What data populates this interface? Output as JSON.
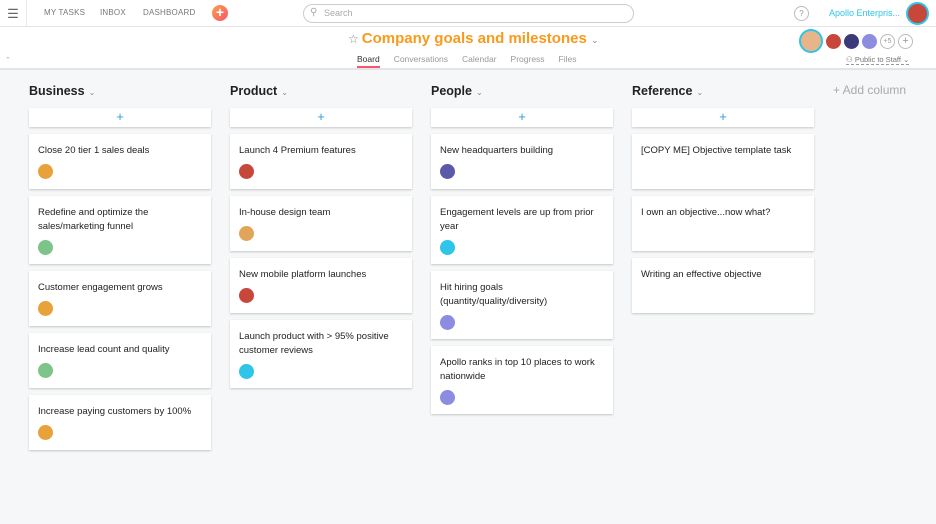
{
  "topbar": {
    "nav": [
      "MY TASKS",
      "INBOX",
      "DASHBOARD"
    ],
    "search_placeholder": "Search",
    "help": "?",
    "org": "Apollo Enterpris..."
  },
  "project": {
    "title": "Company goals and milestones",
    "tabs": [
      "Board",
      "Conversations",
      "Calendar",
      "Progress",
      "Files"
    ],
    "active_tab": "Board",
    "members_more": "+5",
    "privacy": "Public to Staff"
  },
  "add_column": "+ Add column",
  "columns": [
    {
      "name": "Business",
      "cards": [
        {
          "title": "Close 20 tier 1 sales deals",
          "avatar": "#e8a23a"
        },
        {
          "title": "Redefine and optimize the sales/marketing funnel",
          "avatar": "#7cc48a"
        },
        {
          "title": "Customer engagement grows",
          "avatar": "#e8a23a"
        },
        {
          "title": "Increase lead count and quality",
          "avatar": "#7cc48a"
        },
        {
          "title": "Increase paying customers by 100%",
          "avatar": "#e8a23a"
        }
      ]
    },
    {
      "name": "Product",
      "cards": [
        {
          "title": "Launch 4 Premium features",
          "avatar": "#c8473b"
        },
        {
          "title": "In-house design team",
          "avatar": "#e0a55a"
        },
        {
          "title": "New mobile platform launches",
          "avatar": "#c8473b"
        },
        {
          "title": "Launch product with > 95% positive customer reviews",
          "avatar": "#2ec5e8"
        }
      ]
    },
    {
      "name": "People",
      "cards": [
        {
          "title": "New headquarters building",
          "avatar": "#5a5aa8"
        },
        {
          "title": "Engagement levels are up from prior year",
          "avatar": "#2ec5e8"
        },
        {
          "title": "Hit hiring goals (quantity/quality/diversity)",
          "avatar": "#8c8ce0"
        },
        {
          "title": "Apollo ranks in top 10 places to work nationwide",
          "avatar": "#8c8ce0"
        }
      ]
    },
    {
      "name": "Reference",
      "cards": [
        {
          "title": "[COPY ME] Objective template task"
        },
        {
          "title": "I own an objective...now what?"
        },
        {
          "title": "Writing an effective objective"
        }
      ]
    }
  ]
}
